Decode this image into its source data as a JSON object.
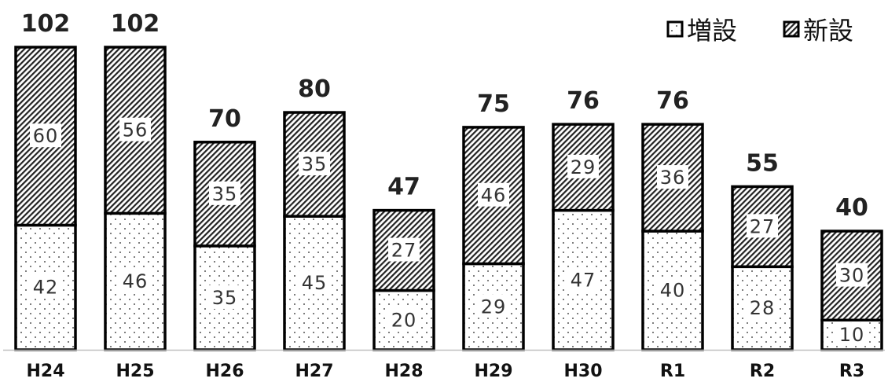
{
  "chart_data": {
    "type": "bar",
    "stacked": true,
    "categories": [
      "H24",
      "H25",
      "H26",
      "H27",
      "H28",
      "H29",
      "H30",
      "R1",
      "R2",
      "R3"
    ],
    "series": [
      {
        "name": "増設",
        "pattern": "dots",
        "values": [
          42,
          46,
          35,
          45,
          20,
          29,
          47,
          40,
          28,
          10
        ]
      },
      {
        "name": "新設",
        "pattern": "diagonal-hatch",
        "values": [
          60,
          56,
          35,
          35,
          27,
          46,
          29,
          36,
          27,
          30
        ]
      }
    ],
    "totals": [
      102,
      102,
      70,
      80,
      47,
      75,
      76,
      76,
      55,
      40
    ],
    "legend_position": "top-right",
    "grid": false,
    "ylim": [
      0,
      102
    ]
  }
}
